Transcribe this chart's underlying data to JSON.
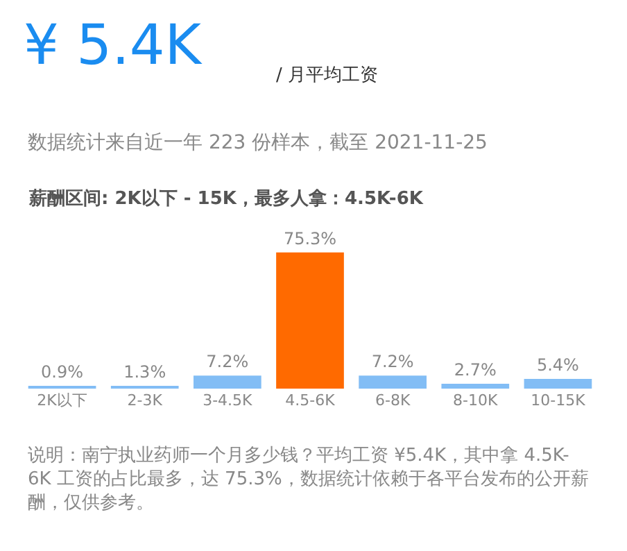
{
  "chart_data": {
    "type": "bar",
    "title": "¥ 5.4K",
    "subtitle": "/ 月平均工资",
    "annotations": [
      "数据统计来自近一年 223 份样本，截至 2021-11-25",
      "薪酬区间: 2K以下 - 15K，最多人拿：4.5K-6K",
      "说明：南宁执业药师一个月多少钱？平均工资 ¥5.4K，其中拿 4.5K-6K 工资的占比最多，达 75.3%，数据统计依赖于各平台发布的公开薪酬，仅供参考。"
    ],
    "categories": [
      "2K以下",
      "2-3K",
      "3-4.5K",
      "4.5-6K",
      "6-8K",
      "8-10K",
      "10-15K"
    ],
    "values": [
      0.9,
      1.3,
      7.2,
      75.3,
      7.2,
      2.7,
      5.4
    ],
    "value_labels": [
      "0.9%",
      "1.3%",
      "7.2%",
      "75.3%",
      "7.2%",
      "2.7%",
      "5.4%"
    ],
    "colors": [
      "#82bdf5",
      "#82bdf5",
      "#82bdf5",
      "#ff6a00",
      "#82bdf5",
      "#82bdf5",
      "#82bdf5"
    ],
    "legend": false
  }
}
